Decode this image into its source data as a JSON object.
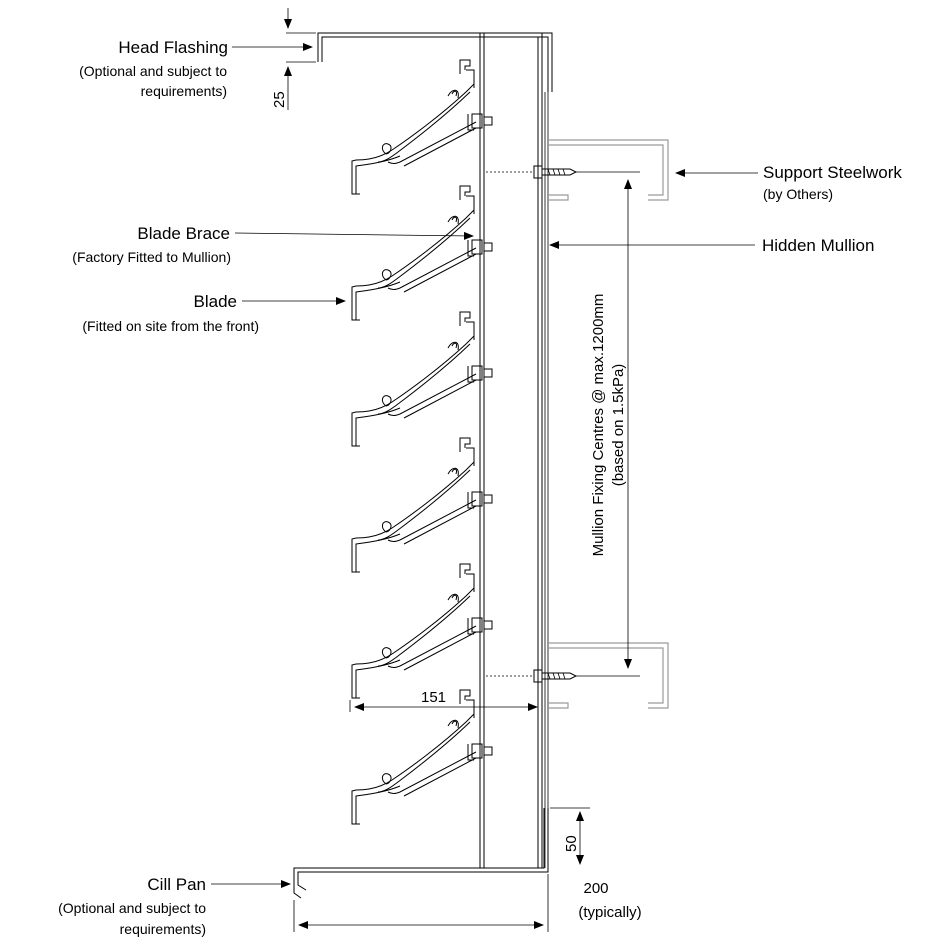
{
  "labels": {
    "head_flashing": {
      "title": "Head Flashing",
      "note_1": "(Optional and subject to",
      "note_2": "requirements)"
    },
    "support_steelwork": {
      "title": "Support Steelwork",
      "note": "(by Others)"
    },
    "blade_brace": {
      "title": "Blade Brace",
      "note": "(Factory Fitted to Mullion)"
    },
    "hidden_mullion": {
      "title": "Hidden Mullion"
    },
    "blade": {
      "title": "Blade",
      "note": "(Fitted on site from the front)"
    },
    "cill_pan": {
      "title": "Cill Pan",
      "note_1": "(Optional and subject to",
      "note_2": "requirements)"
    }
  },
  "dimensions": {
    "head_flashing_gap": "25",
    "blade_depth": "151",
    "cill_upstand": "50",
    "cill_width": "200",
    "cill_width_note": "(typically)",
    "mullion_fixing_1": "Mullion Fixing Centres @ max.1200mm",
    "mullion_fixing_2": "(based on 1.5kPa)"
  },
  "blade_count": 6
}
